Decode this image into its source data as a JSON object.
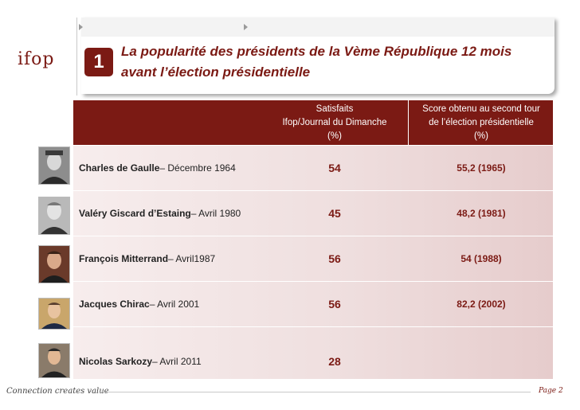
{
  "header": {
    "logo": "ifop",
    "number": "1",
    "title_line1": "La popularité des présidents de la Vème République  12 mois",
    "title_line2": "avant l’élection présidentielle"
  },
  "table": {
    "columns": {
      "satisfaits_l1": "Satisfaits",
      "satisfaits_l2": "Ifop/Journal du Dimanche",
      "satisfaits_l3": "(%)",
      "score_l1": "Score obtenu au second tour",
      "score_l2": "de l’élection présidentielle",
      "score_l3": "(%)"
    },
    "rows": [
      {
        "name": "Charles de Gaulle",
        "date": " – Décembre 1964",
        "satisfaits": "54",
        "score": "55,2 (1965)"
      },
      {
        "name": "Valéry Giscard d’Estaing",
        "date": " – Avril 1980",
        "satisfaits": "45",
        "score": "48,2 (1981)"
      },
      {
        "name": "François Mitterrand",
        "date": " – Avril1987",
        "satisfaits": "56",
        "score": "54 (1988)"
      },
      {
        "name": "Jacques Chirac",
        "date": " – Avril 2001",
        "satisfaits": "56",
        "score": "82,2 (2002)"
      },
      {
        "name": "Nicolas Sarkozy",
        "date": " – Avril 2011",
        "satisfaits": "28",
        "score": ""
      }
    ]
  },
  "footer": {
    "tagline": "Connection creates value",
    "page": "Page 2"
  }
}
